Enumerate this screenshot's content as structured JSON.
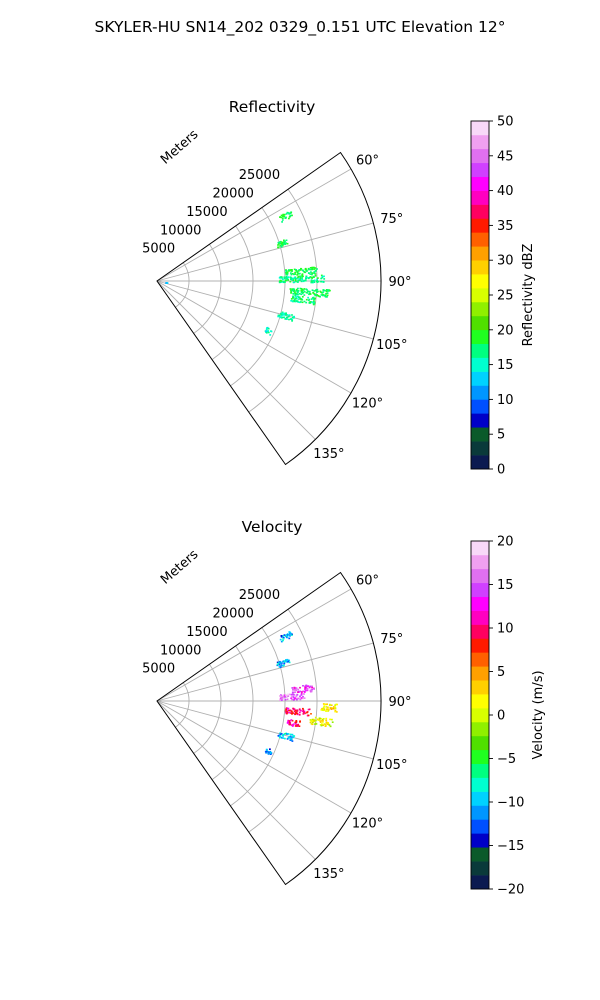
{
  "figure_title": "SKYLER-HU  SN14_202  0329_0.151 UTC Elevation 12°",
  "chart_data": [
    {
      "type": "polar-sector",
      "title": "Reflectivity",
      "radial_label": "Meters",
      "r_ticks": [
        5000,
        10000,
        15000,
        20000,
        25000
      ],
      "r_max": 35000,
      "angle_range_deg": [
        55,
        145
      ],
      "angle_ticks": [
        "60°",
        "75°",
        "90°",
        "105°",
        "120°",
        "135°"
      ],
      "angle_tick_values": [
        60,
        75,
        90,
        105,
        120,
        135
      ],
      "grid": true,
      "colorbar": {
        "label": "Reflectivity dBZ",
        "min": 0,
        "max": 50,
        "ticks": [
          "0",
          "5",
          "10",
          "15",
          "20",
          "25",
          "30",
          "35",
          "40",
          "45",
          "50"
        ],
        "colors": [
          "#0b1a50",
          "#0a3a3a",
          "#0a5a2a",
          "#0000c8",
          "#0050ff",
          "#0096ff",
          "#00d2ff",
          "#00ffd0",
          "#00ff80",
          "#20ff20",
          "#50e000",
          "#90f000",
          "#d8ff00",
          "#ffff00",
          "#ffd000",
          "#ffa000",
          "#ff6000",
          "#ff1a00",
          "#ff0060",
          "#ff00c0",
          "#ff00ff",
          "#d040ff",
          "#e070f0",
          "#f0a0f0",
          "#f8d8f8"
        ]
      },
      "echo_clusters": [
        {
          "angle": 63,
          "r": [
            21500,
            23500
          ],
          "value": 18
        },
        {
          "angle": 73,
          "r": [
            19500,
            21500
          ],
          "value": 18
        },
        {
          "angle": 86,
          "r": [
            20000,
            25000
          ],
          "value": 18
        },
        {
          "angle": 89,
          "r": [
            19000,
            26000
          ],
          "value": 17
        },
        {
          "angle": 94,
          "r": [
            20500,
            27000
          ],
          "value": 18
        },
        {
          "angle": 97,
          "r": [
            21000,
            25000
          ],
          "value": 17
        },
        {
          "angle": 105,
          "r": [
            19500,
            22000
          ],
          "value": 16
        },
        {
          "angle": 114,
          "r": [
            18500,
            19500
          ],
          "value": 15
        },
        {
          "angle": 98,
          "r": [
            1300,
            1500
          ],
          "value": 12
        }
      ]
    },
    {
      "type": "polar-sector",
      "title": "Velocity",
      "radial_label": "Meters",
      "r_ticks": [
        5000,
        10000,
        15000,
        20000,
        25000
      ],
      "r_max": 35000,
      "angle_range_deg": [
        55,
        145
      ],
      "angle_ticks": [
        "60°",
        "75°",
        "90°",
        "105°",
        "120°",
        "135°"
      ],
      "angle_tick_values": [
        60,
        75,
        90,
        105,
        120,
        135
      ],
      "grid": true,
      "colorbar": {
        "label": "Velocity (m/s)",
        "min": -20,
        "max": 20,
        "ticks": [
          "−20",
          "−15",
          "−10",
          "−5",
          "0",
          "5",
          "10",
          "15",
          "20"
        ],
        "colors": [
          "#0b1a50",
          "#0a3a3a",
          "#0a5a2a",
          "#0000c8",
          "#0050ff",
          "#0096ff",
          "#00d2ff",
          "#00ffd0",
          "#00ff80",
          "#20ff20",
          "#50e000",
          "#90f000",
          "#d8ff00",
          "#ffff00",
          "#ffd000",
          "#ffa000",
          "#ff6000",
          "#ff1a00",
          "#ff0060",
          "#ff00c0",
          "#ff00ff",
          "#d040ff",
          "#e070f0",
          "#f0a0f0",
          "#f8d8f8"
        ]
      },
      "echo_clusters": [
        {
          "angle": 63,
          "r": [
            21500,
            23500
          ],
          "value": -11
        },
        {
          "angle": 73,
          "r": [
            19500,
            21500
          ],
          "value": -11
        },
        {
          "angle": 85,
          "r": [
            21000,
            24500
          ],
          "value": 14
        },
        {
          "angle": 88,
          "r": [
            19000,
            23000
          ],
          "value": 16
        },
        {
          "angle": 92,
          "r": [
            25500,
            28000
          ],
          "value": 3
        },
        {
          "angle": 94,
          "r": [
            20000,
            24000
          ],
          "value": 10
        },
        {
          "angle": 97,
          "r": [
            24000,
            27500
          ],
          "value": 1
        },
        {
          "angle": 99,
          "r": [
            20500,
            22500
          ],
          "value": 11
        },
        {
          "angle": 105,
          "r": [
            19500,
            22000
          ],
          "value": -10
        },
        {
          "angle": 114,
          "r": [
            18500,
            19500
          ],
          "value": -12
        }
      ]
    }
  ]
}
